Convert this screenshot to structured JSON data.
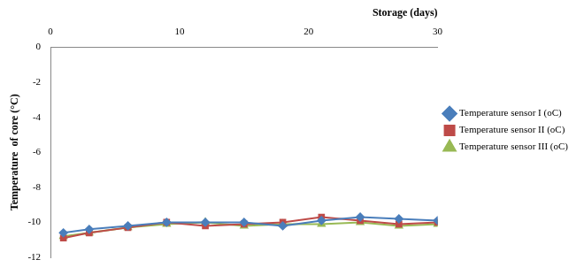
{
  "chart_data": {
    "type": "line",
    "x_label": "Storage (days)",
    "y_label": "Temperature  of core (°C)",
    "x": [
      1,
      3,
      6,
      9,
      12,
      15,
      18,
      21,
      24,
      27,
      30
    ],
    "series": [
      {
        "name": "Temperature sensor I (oC)",
        "color": "#4a7ebb",
        "marker": "diamond",
        "values": [
          -10.6,
          -10.4,
          -10.2,
          -10.0,
          -10.0,
          -10.0,
          -10.2,
          -9.9,
          -9.7,
          -9.8,
          -9.9
        ]
      },
      {
        "name": "Temperature sensor II (oC)",
        "color": "#be4b48",
        "marker": "square",
        "values": [
          -10.9,
          -10.6,
          -10.3,
          -10.0,
          -10.2,
          -10.1,
          -10.0,
          -9.7,
          -9.9,
          -10.1,
          -10.0
        ]
      },
      {
        "name": "Temperature sensor III (oC)",
        "color": "#98b954",
        "marker": "triangle",
        "values": [
          -10.8,
          -10.6,
          -10.3,
          -10.1,
          -10.0,
          -10.2,
          -10.1,
          -10.1,
          -10.0,
          -10.2,
          -10.1
        ]
      }
    ],
    "xlim": [
      0,
      30
    ],
    "xticks": [
      0,
      10,
      20,
      30
    ],
    "ylim": [
      -12,
      0
    ],
    "yticks": [
      -12,
      -10,
      -8,
      -6,
      -4,
      -2,
      0
    ],
    "grid": false,
    "legend": "right"
  }
}
